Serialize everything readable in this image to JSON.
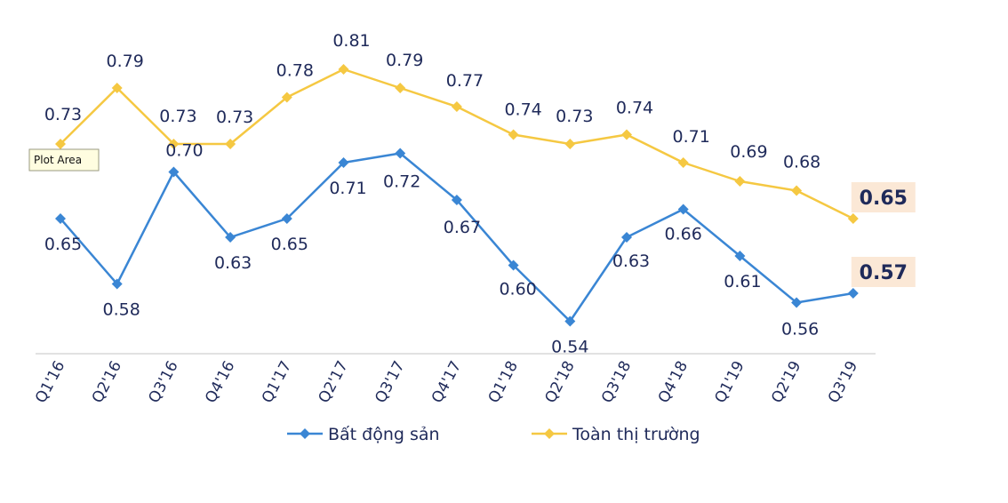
{
  "chart_data": {
    "type": "line",
    "categories": [
      "Q1'16",
      "Q2'16",
      "Q3'16",
      "Q4'16",
      "Q1'17",
      "Q2'17",
      "Q3'17",
      "Q4'17",
      "Q1'18",
      "Q2'18",
      "Q3'18",
      "Q4'18",
      "Q1'19",
      "Q2'19",
      "Q3'19"
    ],
    "series": [
      {
        "name": "Bất động sản",
        "color": "#3a86d4",
        "values": [
          0.65,
          0.58,
          0.7,
          0.63,
          0.65,
          0.71,
          0.72,
          0.67,
          0.6,
          0.54,
          0.63,
          0.66,
          0.61,
          0.56,
          0.57
        ]
      },
      {
        "name": "Toàn thị trường",
        "color": "#f5c842",
        "values": [
          0.73,
          0.79,
          0.73,
          0.73,
          0.78,
          0.81,
          0.79,
          0.77,
          0.74,
          0.73,
          0.74,
          0.71,
          0.69,
          0.68,
          0.65
        ]
      }
    ],
    "highlight_last_value": true,
    "highlight_color": "#fbe8d6",
    "legend_position": "bottom",
    "grid": false
  },
  "tooltip": {
    "label": "Plot Area"
  }
}
